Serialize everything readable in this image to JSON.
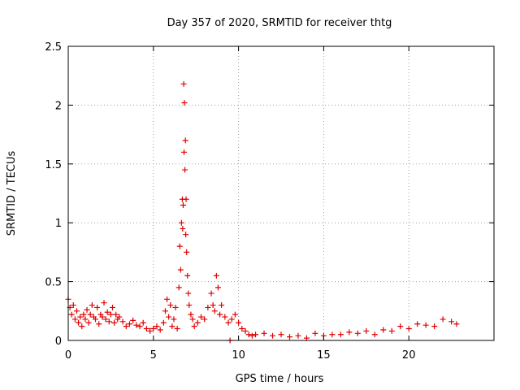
{
  "chart_data": {
    "type": "scatter",
    "title": "Day 357 of 2020, SRMTID for receiver thtg",
    "xlabel": "GPS time / hours",
    "ylabel": "SRMTID / TECUs",
    "xlim": [
      0,
      25
    ],
    "ylim": [
      0,
      2.5
    ],
    "x_ticks": [
      0,
      5,
      10,
      15,
      20
    ],
    "x_tick_labels": [
      "0",
      "5",
      "10",
      "15",
      "20"
    ],
    "y_ticks": [
      0,
      0.5,
      1,
      1.5,
      2,
      2.5
    ],
    "y_tick_labels": [
      "0",
      "0.5",
      "1",
      "1.5",
      "2",
      "2.5"
    ],
    "grid": true,
    "marker": "+",
    "series_color": "#e00000",
    "series": [
      {
        "name": "SRMTID",
        "x": [
          0.0,
          0.1,
          0.2,
          0.3,
          0.4,
          0.5,
          0.6,
          0.7,
          0.8,
          0.9,
          1.0,
          1.1,
          1.2,
          1.3,
          1.4,
          1.5,
          1.6,
          1.7,
          1.8,
          1.9,
          2.0,
          2.1,
          2.2,
          2.3,
          2.4,
          2.5,
          2.6,
          2.7,
          2.8,
          2.9,
          3.0,
          3.2,
          3.4,
          3.6,
          3.8,
          4.0,
          4.2,
          4.4,
          4.6,
          4.8,
          5.0,
          5.2,
          5.4,
          5.6,
          5.7,
          5.8,
          5.9,
          6.0,
          6.1,
          6.2,
          6.3,
          6.4,
          6.5,
          6.55,
          6.6,
          6.65,
          6.7,
          6.72,
          6.75,
          6.78,
          6.8,
          6.82,
          6.85,
          6.88,
          6.9,
          6.92,
          6.95,
          7.0,
          7.05,
          7.1,
          7.2,
          7.3,
          7.4,
          7.6,
          7.8,
          8.0,
          8.2,
          8.4,
          8.5,
          8.6,
          8.7,
          8.8,
          8.9,
          9.0,
          9.2,
          9.4,
          9.5,
          9.6,
          9.8,
          10.0,
          10.2,
          10.4,
          10.6,
          10.8,
          11.0,
          11.5,
          12.0,
          12.5,
          13.0,
          13.5,
          14.0,
          14.5,
          15.0,
          15.5,
          16.0,
          16.5,
          17.0,
          17.5,
          18.0,
          18.5,
          19.0,
          19.5,
          20.0,
          20.5,
          21.0,
          21.5,
          22.0,
          22.5,
          22.8
        ],
        "y": [
          0.35,
          0.28,
          0.22,
          0.3,
          0.18,
          0.25,
          0.15,
          0.2,
          0.12,
          0.22,
          0.18,
          0.26,
          0.15,
          0.22,
          0.3,
          0.2,
          0.18,
          0.28,
          0.14,
          0.22,
          0.2,
          0.32,
          0.18,
          0.24,
          0.16,
          0.22,
          0.28,
          0.15,
          0.22,
          0.18,
          0.2,
          0.16,
          0.12,
          0.14,
          0.17,
          0.13,
          0.12,
          0.15,
          0.1,
          0.08,
          0.1,
          0.12,
          0.09,
          0.15,
          0.25,
          0.35,
          0.2,
          0.3,
          0.12,
          0.18,
          0.28,
          0.1,
          0.45,
          0.8,
          0.6,
          1.0,
          1.2,
          0.95,
          1.15,
          2.18,
          1.6,
          2.02,
          1.45,
          1.7,
          0.9,
          1.2,
          0.75,
          0.55,
          0.4,
          0.3,
          0.22,
          0.18,
          0.12,
          0.15,
          0.2,
          0.18,
          0.28,
          0.4,
          0.3,
          0.25,
          0.55,
          0.45,
          0.22,
          0.3,
          0.2,
          0.15,
          0.0,
          0.18,
          0.22,
          0.15,
          0.1,
          0.08,
          0.05,
          0.04,
          0.05,
          0.06,
          0.04,
          0.05,
          0.03,
          0.04,
          0.02,
          0.06,
          0.04,
          0.05,
          0.05,
          0.07,
          0.06,
          0.08,
          0.05,
          0.09,
          0.08,
          0.12,
          0.1,
          0.14,
          0.13,
          0.12,
          0.18,
          0.16,
          0.14
        ]
      }
    ]
  }
}
